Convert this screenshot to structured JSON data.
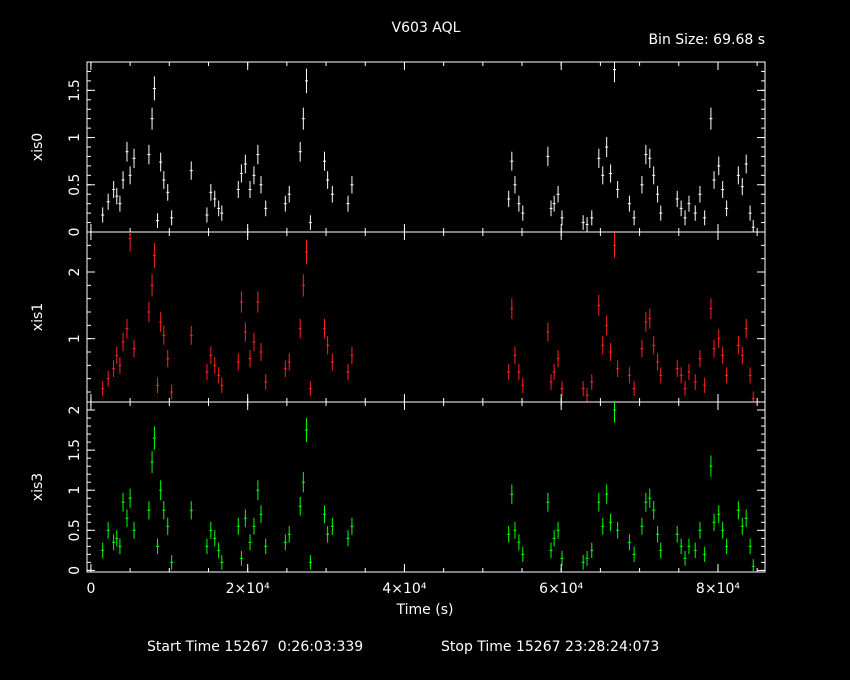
{
  "header": {
    "title": "V603 AQL",
    "bin_size_label": "Bin Size: 69.68 s"
  },
  "footer": {
    "start_time_label": "Start Time 15267  0:26:03:339",
    "stop_time_label": "Stop Time 15267 23:28:24:073"
  },
  "chart_data": {
    "type": "scatter",
    "title": "V603 AQL",
    "xlabel": "Time (s)",
    "xlim": [
      -500,
      86000
    ],
    "x_ticks": [
      {
        "value": 0,
        "label": "0"
      },
      {
        "value": 20000,
        "label": "2×10⁴"
      },
      {
        "value": 40000,
        "label": "4×10⁴"
      },
      {
        "value": 60000,
        "label": "6×10⁴"
      },
      {
        "value": 80000,
        "label": "8×10⁴"
      }
    ],
    "panels": [
      {
        "name": "xis0",
        "ylabel": "xis0",
        "color": "#ffffff",
        "ylim": [
          0,
          1.8
        ],
        "y_ticks": [
          {
            "value": 0,
            "label": "0"
          },
          {
            "value": 0.5,
            "label": "0.5"
          },
          {
            "value": 1,
            "label": "1"
          },
          {
            "value": 1.5,
            "label": "1.5"
          }
        ],
        "points": [
          [
            1500,
            0.18
          ],
          [
            2200,
            0.32
          ],
          [
            2900,
            0.45
          ],
          [
            3300,
            0.38
          ],
          [
            3700,
            0.3
          ],
          [
            4100,
            0.55
          ],
          [
            4600,
            0.85
          ],
          [
            5000,
            0.6
          ],
          [
            5500,
            0.78
          ],
          [
            7400,
            0.82
          ],
          [
            7800,
            1.2
          ],
          [
            8100,
            1.52
          ],
          [
            8500,
            0.12
          ],
          [
            8900,
            0.74
          ],
          [
            9300,
            0.55
          ],
          [
            9800,
            0.42
          ],
          [
            10300,
            0.15
          ],
          [
            12800,
            0.65
          ],
          [
            14800,
            0.18
          ],
          [
            15300,
            0.42
          ],
          [
            15800,
            0.35
          ],
          [
            16300,
            0.25
          ],
          [
            16700,
            0.2
          ],
          [
            18800,
            0.45
          ],
          [
            19200,
            0.62
          ],
          [
            19700,
            0.72
          ],
          [
            20300,
            0.45
          ],
          [
            20800,
            0.6
          ],
          [
            21300,
            0.82
          ],
          [
            21700,
            0.5
          ],
          [
            22300,
            0.25
          ],
          [
            24800,
            0.3
          ],
          [
            25300,
            0.4
          ],
          [
            26700,
            0.85
          ],
          [
            27100,
            1.2
          ],
          [
            27500,
            1.6
          ],
          [
            28000,
            0.1
          ],
          [
            29800,
            0.75
          ],
          [
            30200,
            0.55
          ],
          [
            30800,
            0.4
          ],
          [
            32800,
            0.3
          ],
          [
            33300,
            0.5
          ],
          [
            53300,
            0.35
          ],
          [
            53700,
            0.75
          ],
          [
            54100,
            0.5
          ],
          [
            54600,
            0.3
          ],
          [
            55100,
            0.2
          ],
          [
            58300,
            0.8
          ],
          [
            58700,
            0.25
          ],
          [
            59100,
            0.3
          ],
          [
            59600,
            0.4
          ],
          [
            60100,
            0.15
          ],
          [
            62800,
            0.1
          ],
          [
            63300,
            0.08
          ],
          [
            63900,
            0.15
          ],
          [
            64800,
            0.78
          ],
          [
            65300,
            0.6
          ],
          [
            65800,
            0.9
          ],
          [
            66300,
            0.62
          ],
          [
            66800,
            1.72
          ],
          [
            67200,
            0.45
          ],
          [
            68700,
            0.3
          ],
          [
            69300,
            0.15
          ],
          [
            70300,
            0.5
          ],
          [
            70800,
            0.82
          ],
          [
            71300,
            0.78
          ],
          [
            71800,
            0.6
          ],
          [
            72300,
            0.4
          ],
          [
            72700,
            0.2
          ],
          [
            74800,
            0.35
          ],
          [
            75300,
            0.25
          ],
          [
            75800,
            0.15
          ],
          [
            76300,
            0.3
          ],
          [
            77100,
            0.2
          ],
          [
            77700,
            0.4
          ],
          [
            78300,
            0.15
          ],
          [
            79100,
            1.2
          ],
          [
            79500,
            0.55
          ],
          [
            80100,
            0.7
          ],
          [
            80600,
            0.45
          ],
          [
            81100,
            0.25
          ],
          [
            82600,
            0.6
          ],
          [
            83100,
            0.48
          ],
          [
            83600,
            0.72
          ],
          [
            84100,
            0.2
          ],
          [
            84500,
            0.05
          ]
        ]
      },
      {
        "name": "xis1",
        "ylabel": "xis1",
        "color": "#ff2020",
        "ylim": [
          0.05,
          2.6
        ],
        "y_ticks": [
          {
            "value": 1,
            "label": "1"
          },
          {
            "value": 2,
            "label": "2"
          }
        ],
        "points": [
          [
            1500,
            0.25
          ],
          [
            2200,
            0.4
          ],
          [
            2900,
            0.55
          ],
          [
            3300,
            0.75
          ],
          [
            3700,
            0.6
          ],
          [
            4100,
            0.95
          ],
          [
            4600,
            1.15
          ],
          [
            5000,
            2.5
          ],
          [
            5500,
            0.85
          ],
          [
            7400,
            1.4
          ],
          [
            7800,
            1.8
          ],
          [
            8100,
            2.25
          ],
          [
            8500,
            0.3
          ],
          [
            8900,
            1.25
          ],
          [
            9300,
            1.05
          ],
          [
            9800,
            0.7
          ],
          [
            10300,
            0.2
          ],
          [
            12800,
            1.05
          ],
          [
            14800,
            0.5
          ],
          [
            15300,
            0.75
          ],
          [
            15800,
            0.6
          ],
          [
            16300,
            0.45
          ],
          [
            16700,
            0.3
          ],
          [
            18800,
            0.65
          ],
          [
            19200,
            1.55
          ],
          [
            19700,
            1.1
          ],
          [
            20300,
            0.7
          ],
          [
            20800,
            0.95
          ],
          [
            21300,
            1.55
          ],
          [
            21700,
            0.8
          ],
          [
            22300,
            0.35
          ],
          [
            24800,
            0.55
          ],
          [
            25300,
            0.65
          ],
          [
            26700,
            1.15
          ],
          [
            27100,
            1.8
          ],
          [
            27500,
            2.3
          ],
          [
            28000,
            0.25
          ],
          [
            29800,
            1.15
          ],
          [
            30200,
            0.9
          ],
          [
            30800,
            0.65
          ],
          [
            32800,
            0.5
          ],
          [
            33300,
            0.75
          ],
          [
            53300,
            0.5
          ],
          [
            53700,
            1.45
          ],
          [
            54100,
            0.75
          ],
          [
            54600,
            0.5
          ],
          [
            55100,
            0.3
          ],
          [
            58300,
            1.1
          ],
          [
            58700,
            0.35
          ],
          [
            59100,
            0.5
          ],
          [
            59600,
            0.7
          ],
          [
            60100,
            0.25
          ],
          [
            62800,
            0.25
          ],
          [
            63300,
            0.15
          ],
          [
            63900,
            0.35
          ],
          [
            64800,
            1.5
          ],
          [
            65300,
            0.9
          ],
          [
            65800,
            1.2
          ],
          [
            66300,
            0.8
          ],
          [
            66800,
            2.4
          ],
          [
            67200,
            0.55
          ],
          [
            68700,
            0.45
          ],
          [
            69300,
            0.25
          ],
          [
            70300,
            0.85
          ],
          [
            70800,
            1.25
          ],
          [
            71300,
            1.3
          ],
          [
            71800,
            0.9
          ],
          [
            72300,
            0.65
          ],
          [
            72700,
            0.45
          ],
          [
            74800,
            0.55
          ],
          [
            75300,
            0.45
          ],
          [
            75800,
            0.25
          ],
          [
            76300,
            0.5
          ],
          [
            77100,
            0.35
          ],
          [
            77700,
            0.7
          ],
          [
            78300,
            0.3
          ],
          [
            79100,
            1.45
          ],
          [
            79500,
            0.85
          ],
          [
            80100,
            1.0
          ],
          [
            80600,
            0.75
          ],
          [
            81100,
            0.45
          ],
          [
            82600,
            0.9
          ],
          [
            83100,
            0.75
          ],
          [
            83600,
            1.15
          ],
          [
            84100,
            0.45
          ],
          [
            84500,
            0.1
          ]
        ]
      },
      {
        "name": "xis3",
        "ylabel": "xis3",
        "color": "#00ff00",
        "ylim": [
          -0.02,
          2.1
        ],
        "y_ticks": [
          {
            "value": 0,
            "label": "0"
          },
          {
            "value": 0.5,
            "label": "0.5"
          },
          {
            "value": 1,
            "label": "1"
          },
          {
            "value": 1.5,
            "label": "1.5"
          },
          {
            "value": 2,
            "label": "2"
          }
        ],
        "points": [
          [
            1500,
            0.25
          ],
          [
            2200,
            0.5
          ],
          [
            2900,
            0.35
          ],
          [
            3300,
            0.4
          ],
          [
            3700,
            0.3
          ],
          [
            4100,
            0.85
          ],
          [
            4600,
            0.65
          ],
          [
            5000,
            0.9
          ],
          [
            5500,
            0.5
          ],
          [
            7400,
            0.75
          ],
          [
            7800,
            1.35
          ],
          [
            8100,
            1.65
          ],
          [
            8500,
            0.3
          ],
          [
            8900,
            1.0
          ],
          [
            9300,
            0.75
          ],
          [
            9800,
            0.55
          ],
          [
            10300,
            0.1
          ],
          [
            12800,
            0.75
          ],
          [
            14800,
            0.3
          ],
          [
            15300,
            0.5
          ],
          [
            15800,
            0.4
          ],
          [
            16300,
            0.25
          ],
          [
            16700,
            0.1
          ],
          [
            18800,
            0.55
          ],
          [
            19200,
            0.15
          ],
          [
            19700,
            0.65
          ],
          [
            20300,
            0.35
          ],
          [
            20800,
            0.55
          ],
          [
            21300,
            1.0
          ],
          [
            21700,
            0.7
          ],
          [
            22300,
            0.3
          ],
          [
            24800,
            0.35
          ],
          [
            25300,
            0.45
          ],
          [
            26700,
            0.8
          ],
          [
            27100,
            1.1
          ],
          [
            27500,
            1.75
          ],
          [
            28000,
            0.1
          ],
          [
            29800,
            0.7
          ],
          [
            30200,
            0.45
          ],
          [
            30800,
            0.55
          ],
          [
            32800,
            0.4
          ],
          [
            33300,
            0.55
          ],
          [
            53300,
            0.45
          ],
          [
            53700,
            0.95
          ],
          [
            54100,
            0.5
          ],
          [
            54600,
            0.35
          ],
          [
            55100,
            0.2
          ],
          [
            58300,
            0.85
          ],
          [
            58700,
            0.25
          ],
          [
            59100,
            0.4
          ],
          [
            59600,
            0.5
          ],
          [
            60100,
            0.15
          ],
          [
            62800,
            0.1
          ],
          [
            63300,
            0.15
          ],
          [
            63900,
            0.25
          ],
          [
            64800,
            0.85
          ],
          [
            65300,
            0.55
          ],
          [
            65800,
            0.95
          ],
          [
            66300,
            0.6
          ],
          [
            66800,
            2.0
          ],
          [
            67200,
            0.5
          ],
          [
            68700,
            0.35
          ],
          [
            69300,
            0.2
          ],
          [
            70300,
            0.55
          ],
          [
            70800,
            0.85
          ],
          [
            71300,
            0.9
          ],
          [
            71800,
            0.75
          ],
          [
            72300,
            0.45
          ],
          [
            72700,
            0.25
          ],
          [
            74800,
            0.45
          ],
          [
            75300,
            0.3
          ],
          [
            75800,
            0.15
          ],
          [
            76300,
            0.3
          ],
          [
            77100,
            0.25
          ],
          [
            77700,
            0.5
          ],
          [
            78300,
            0.2
          ],
          [
            79100,
            1.3
          ],
          [
            79500,
            0.6
          ],
          [
            80100,
            0.7
          ],
          [
            80600,
            0.5
          ],
          [
            81100,
            0.3
          ],
          [
            82600,
            0.75
          ],
          [
            83100,
            0.55
          ],
          [
            83600,
            0.65
          ],
          [
            84100,
            0.3
          ],
          [
            84500,
            0.05
          ]
        ]
      }
    ]
  }
}
